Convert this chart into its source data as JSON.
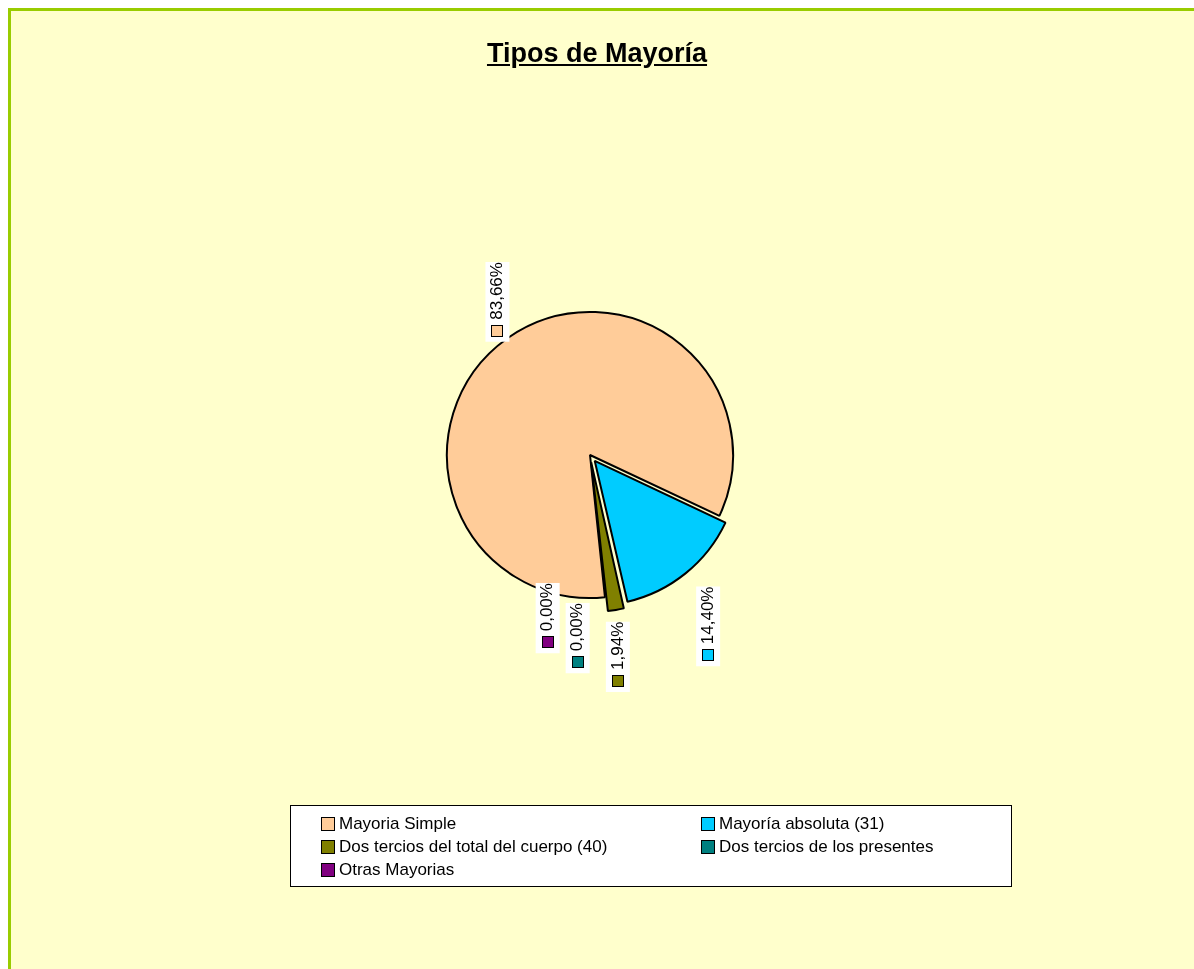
{
  "chart_data": {
    "type": "pie",
    "title": "Tipos de Mayoría",
    "categories": [
      "Mayoria  Simple",
      "Mayoría absoluta (31)",
      "Dos tercios del total del cuerpo (40)",
      "Dos tercios de los presentes",
      "Otras Mayorias"
    ],
    "values": [
      83.66,
      14.4,
      1.94,
      0.0,
      0.0
    ],
    "value_labels": [
      "83,66%",
      "14,40%",
      "1,94%",
      "0,00%",
      "0,00%"
    ],
    "colors": [
      "#ffcc99",
      "#00ccff",
      "#808000",
      "#008080",
      "#800080"
    ],
    "legend": "bottom"
  }
}
